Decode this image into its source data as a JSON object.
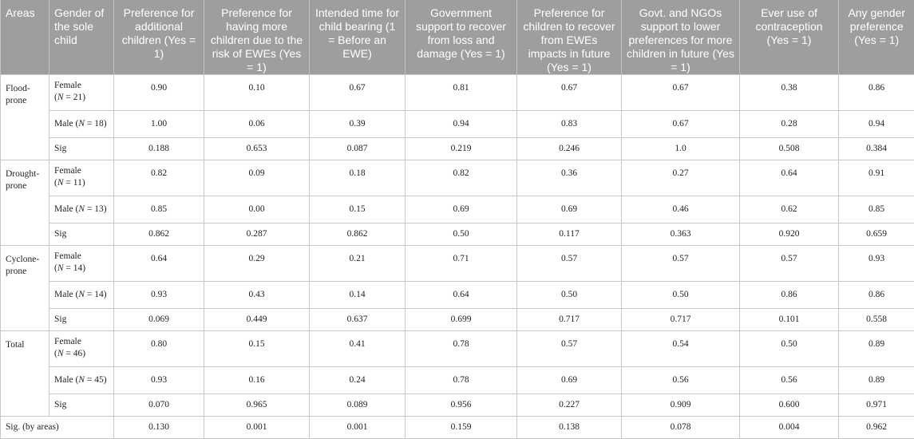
{
  "headers": [
    "Areas",
    "Gender of the sole child",
    "Preference for additional children (Yes = 1)",
    "Preference for having more children due to the risk of EWEs (Yes = 1)",
    "Intended time for child bearing (1 = Before an EWE)",
    "Government support to recover from loss and damage (Yes = 1)",
    "Preference for children to recover from EWEs impacts in future (Yes = 1)",
    "Govt. and NGOs support to lower preferences for more children in future (Yes = 1)",
    "Ever use of contraception (Yes = 1)",
    "Any gender preference (Yes = 1)"
  ],
  "groups": [
    {
      "area": "Flood-prone",
      "rows": [
        {
          "gender": "Female",
          "n": "(N = 21)",
          "values": [
            "0.90",
            "0.10",
            "0.67",
            "0.81",
            "0.67",
            "0.67",
            "0.38",
            "0.86"
          ]
        },
        {
          "gender": "Male (N = 18)",
          "values": [
            "1.00",
            "0.06",
            "0.39",
            "0.94",
            "0.83",
            "0.67",
            "0.28",
            "0.94"
          ]
        },
        {
          "gender": "Sig",
          "values": [
            "0.188",
            "0.653",
            "0.087",
            "0.219",
            "0.246",
            "1.0",
            "0.508",
            "0.384"
          ]
        }
      ]
    },
    {
      "area": "Drought-prone",
      "rows": [
        {
          "gender": "Female",
          "n": "(N = 11)",
          "values": [
            "0.82",
            "0.09",
            "0.18",
            "0.82",
            "0.36",
            "0.27",
            "0.64",
            "0.91"
          ]
        },
        {
          "gender": "Male (N = 13)",
          "values": [
            "0.85",
            "0.00",
            "0.15",
            "0.69",
            "0.69",
            "0.46",
            "0.62",
            "0.85"
          ]
        },
        {
          "gender": "Sig",
          "values": [
            "0.862",
            "0.287",
            "0.862",
            "0.50",
            "0.117",
            "0.363",
            "0.920",
            "0.659"
          ]
        }
      ]
    },
    {
      "area": "Cyclone-prone",
      "rows": [
        {
          "gender": "Female",
          "n": "(N = 14)",
          "values": [
            "0.64",
            "0.29",
            "0.21",
            "0.71",
            "0.57",
            "0.57",
            "0.57",
            "0.93"
          ]
        },
        {
          "gender": "Male (N = 14)",
          "values": [
            "0.93",
            "0.43",
            "0.14",
            "0.64",
            "0.50",
            "0.50",
            "0.86",
            "0.86"
          ]
        },
        {
          "gender": "Sig",
          "values": [
            "0.069",
            "0.449",
            "0.637",
            "0.699",
            "0.717",
            "0.717",
            "0.101",
            "0.558"
          ]
        }
      ]
    },
    {
      "area": "Total",
      "rows": [
        {
          "gender": "Female",
          "n": "(N = 46)",
          "values": [
            "0.80",
            "0.15",
            "0.41",
            "0.78",
            "0.57",
            "0.54",
            "0.50",
            "0.89"
          ]
        },
        {
          "gender": "Male (N = 45)",
          "values": [
            "0.93",
            "0.16",
            "0.24",
            "0.78",
            "0.69",
            "0.56",
            "0.56",
            "0.89"
          ]
        },
        {
          "gender": "Sig",
          "values": [
            "0.070",
            "0.965",
            "0.089",
            "0.956",
            "0.227",
            "0.909",
            "0.600",
            "0.971"
          ]
        }
      ]
    }
  ],
  "footer": {
    "label": "Sig. (by areas)",
    "values": [
      "0.130",
      "0.001",
      "0.001",
      "0.159",
      "0.138",
      "0.078",
      "0.004",
      "0.962"
    ]
  }
}
